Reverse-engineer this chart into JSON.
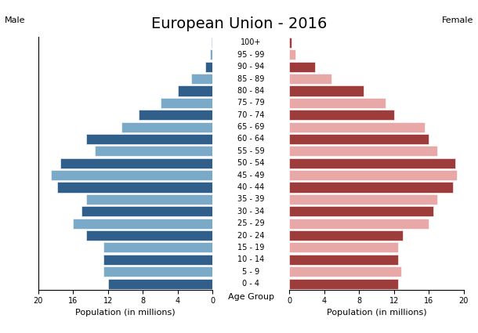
{
  "title": "European Union - 2016",
  "male_label": "Male",
  "female_label": "Female",
  "xlabel_left": "Population (in millions)",
  "xlabel_center": "Age Group",
  "xlabel_right": "Population (in millions)",
  "age_groups": [
    "0 - 4",
    "5 - 9",
    "10 - 14",
    "15 - 19",
    "20 - 24",
    "25 - 29",
    "30 - 34",
    "35 - 39",
    "40 - 44",
    "45 - 49",
    "50 - 54",
    "55 - 59",
    "60 - 64",
    "65 - 69",
    "70 - 74",
    "75 - 79",
    "80 - 84",
    "85 - 89",
    "90 - 94",
    "95 - 99",
    "100+"
  ],
  "male_values": [
    12.0,
    12.5,
    12.5,
    12.5,
    14.5,
    16.0,
    15.0,
    14.5,
    17.8,
    18.5,
    17.5,
    13.5,
    14.5,
    10.5,
    8.5,
    6.0,
    4.0,
    2.5,
    0.8,
    0.3,
    0.1
  ],
  "female_values": [
    12.5,
    12.8,
    12.5,
    12.5,
    13.0,
    16.0,
    16.5,
    17.0,
    18.8,
    19.2,
    19.0,
    17.0,
    16.0,
    15.5,
    12.0,
    11.0,
    8.5,
    4.8,
    3.0,
    0.7,
    0.3
  ],
  "male_colors_dark": "#2f5f8a",
  "male_colors_light": "#7baac8",
  "female_colors_dark": "#9e3b3b",
  "female_colors_light": "#e8a8a8",
  "xlim": 20,
  "background_color": "#ffffff",
  "bar_height": 0.85,
  "title_fontsize": 14,
  "tick_fontsize": 7,
  "label_fontsize": 8,
  "age_label_fontsize": 7
}
